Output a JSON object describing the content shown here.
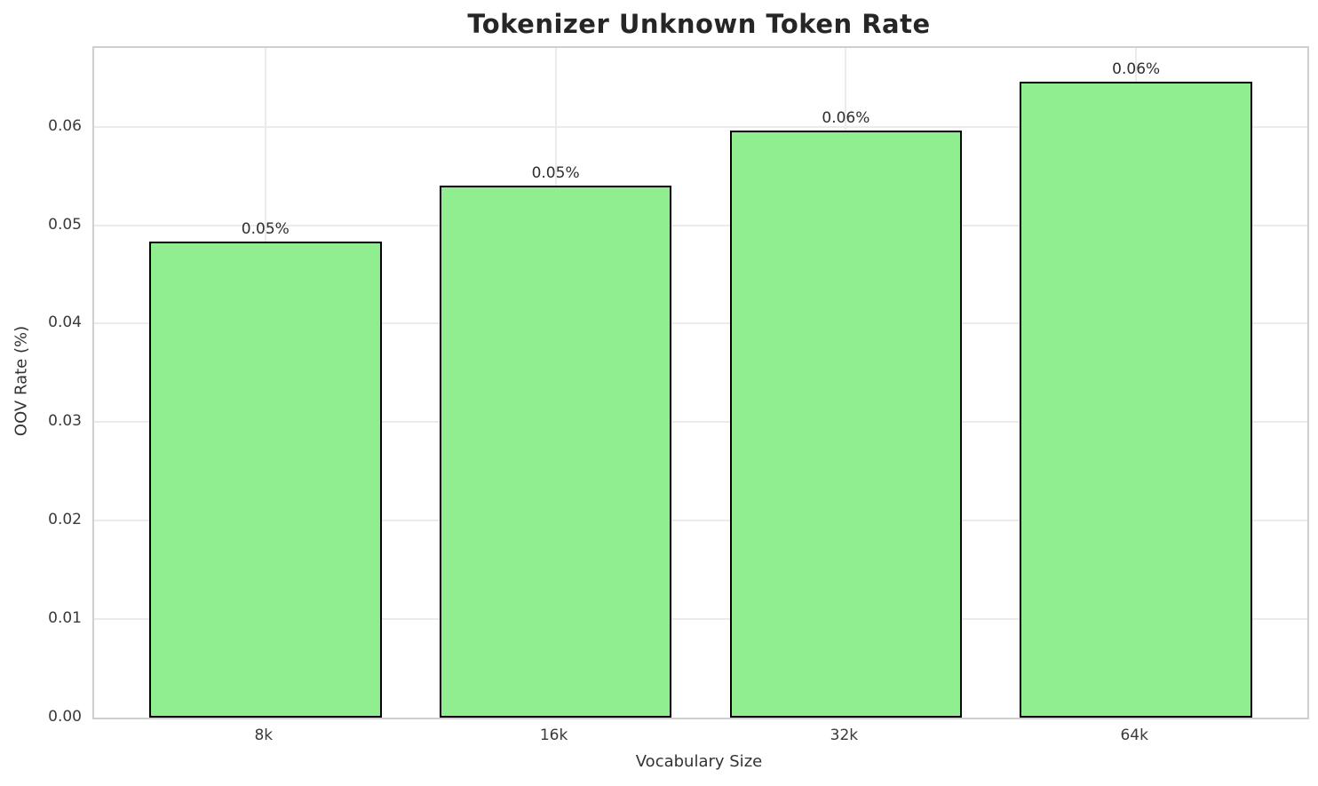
{
  "chart_data": {
    "type": "bar",
    "title": "Tokenizer Unknown Token Rate",
    "xlabel": "Vocabulary Size",
    "ylabel": "OOV Rate (%)",
    "categories": [
      "8k",
      "16k",
      "32k",
      "64k"
    ],
    "values": [
      0.0483,
      0.054,
      0.0596,
      0.0646
    ],
    "bar_labels": [
      "0.05%",
      "0.05%",
      "0.06%",
      "0.06%"
    ],
    "ylim": [
      0,
      0.068
    ],
    "yticks": [
      0,
      0.01,
      0.02,
      0.03,
      0.04,
      0.05,
      0.06
    ],
    "ytick_labels": [
      "0.00",
      "0.01",
      "0.02",
      "0.03",
      "0.04",
      "0.05",
      "0.06"
    ],
    "xlim": [
      -0.59,
      3.59
    ],
    "bar_width": 0.8,
    "grid": true,
    "legend_position": "none",
    "colors": {
      "bar_fill": "#90ee90",
      "bar_edge": "#000000",
      "grid": "#ebebeb",
      "spine": "#cfcfcf",
      "title_text": "#262626",
      "tick_text": "#3a3a3a"
    }
  }
}
